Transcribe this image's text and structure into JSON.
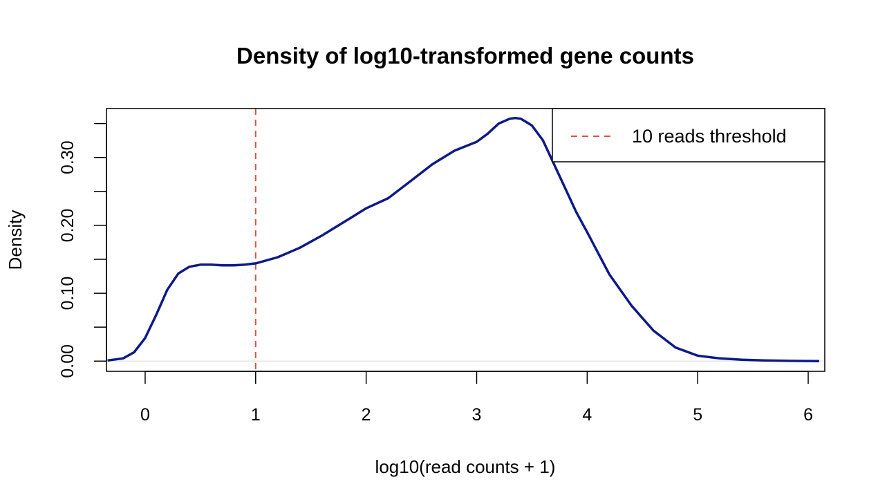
{
  "chart_data": {
    "type": "line",
    "title": "Density of log10-transformed gene counts",
    "xlabel": "log10(read counts + 1)",
    "ylabel": "Density",
    "xlim": [
      -0.35,
      6.15
    ],
    "ylim": [
      -0.015,
      0.372
    ],
    "x_ticks": [
      0,
      1,
      2,
      3,
      4,
      5,
      6
    ],
    "x_tick_labels": [
      "0",
      "1",
      "2",
      "3",
      "4",
      "5",
      "6"
    ],
    "y_ticks": [
      0.0,
      0.05,
      0.1,
      0.15,
      0.2,
      0.25,
      0.3,
      0.35
    ],
    "y_tick_labels": [
      "0.00",
      "",
      "0.10",
      "",
      "0.20",
      "",
      "0.30",
      ""
    ],
    "grid": false,
    "baseline": 0,
    "series": [
      {
        "color": "#0d1a87",
        "x": [
          -0.34,
          -0.2,
          -0.1,
          0.0,
          0.1,
          0.2,
          0.3,
          0.4,
          0.5,
          0.6,
          0.7,
          0.8,
          0.9,
          1.0,
          1.2,
          1.4,
          1.6,
          1.8,
          2.0,
          2.2,
          2.4,
          2.6,
          2.8,
          3.0,
          3.1,
          3.2,
          3.3,
          3.35,
          3.4,
          3.5,
          3.6,
          3.7,
          3.8,
          3.9,
          4.0,
          4.2,
          4.4,
          4.6,
          4.8,
          5.0,
          5.2,
          5.4,
          5.6,
          5.8,
          6.0,
          6.1
        ],
        "y": [
          0.001,
          0.004,
          0.013,
          0.034,
          0.068,
          0.105,
          0.129,
          0.139,
          0.142,
          0.142,
          0.141,
          0.141,
          0.142,
          0.144,
          0.153,
          0.167,
          0.185,
          0.205,
          0.225,
          0.24,
          0.265,
          0.29,
          0.31,
          0.323,
          0.335,
          0.35,
          0.357,
          0.358,
          0.357,
          0.347,
          0.325,
          0.29,
          0.255,
          0.22,
          0.19,
          0.128,
          0.082,
          0.045,
          0.02,
          0.008,
          0.004,
          0.002,
          0.001,
          0.0005,
          0.0002,
          0.0001
        ]
      }
    ],
    "threshold_line": {
      "x": 1,
      "color": "#e0503f",
      "style": "dashed",
      "label": "10 reads threshold"
    },
    "legend": {
      "placement": "top-right",
      "entries": [
        "10 reads threshold"
      ]
    }
  }
}
